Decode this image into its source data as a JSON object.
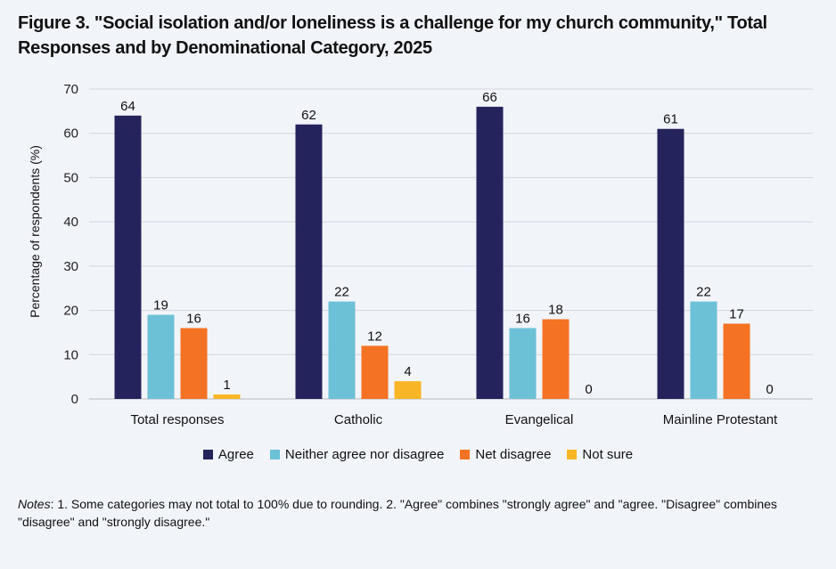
{
  "title": "Figure 3. \"Social isolation and/or loneliness is a challenge for my church community,\" Total Responses and by Denominational Category, 2025",
  "notes": {
    "label": "Notes",
    "text": ": 1. Some categories may not total to 100% due to rounding. 2. \"Agree\" combines \"strongly agree\" and \"agree. \"Disagree\" combines \"disagree\" and \"strongly disagree.\""
  },
  "chart_data": {
    "type": "bar",
    "title": "Figure 3. \"Social isolation and/or loneliness is a challenge for my church community,\" Total Responses and by Denominational Category, 2025",
    "xlabel": "",
    "ylabel": "Percentage of respondents (%)",
    "ylim": [
      0,
      70
    ],
    "yticks": [
      0,
      10,
      20,
      30,
      40,
      50,
      60,
      70
    ],
    "grid": true,
    "legend_position": "bottom",
    "categories": [
      "Total responses",
      "Catholic",
      "Evangelical",
      "Mainline Protestant"
    ],
    "series": [
      {
        "name": "Agree",
        "color": "#25235c",
        "values": [
          64,
          62,
          66,
          61
        ]
      },
      {
        "name": "Neither agree nor disagree",
        "color": "#6cc1d6",
        "values": [
          19,
          22,
          16,
          22
        ]
      },
      {
        "name": "Net disagree",
        "color": "#f47224",
        "values": [
          16,
          12,
          18,
          17
        ]
      },
      {
        "name": "Not sure",
        "color": "#f8b526",
        "values": [
          1,
          4,
          0,
          0
        ]
      }
    ]
  }
}
